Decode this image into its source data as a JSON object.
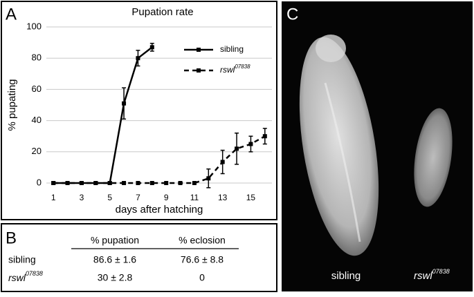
{
  "panel_labels": [
    "A",
    "B",
    "C"
  ],
  "chart_data": {
    "type": "line",
    "title": "Pupation rate",
    "y_label": "% pupating",
    "x_label": "days after hatching",
    "xlim": [
      0.5,
      16.5
    ],
    "xticks": [
      1,
      3,
      5,
      7,
      9,
      11,
      13,
      15
    ],
    "ylim": [
      0,
      100
    ],
    "yticks": [
      0,
      20,
      40,
      60,
      80,
      100
    ],
    "grid": true,
    "legend": "upper right",
    "series": [
      {
        "name": "sibling",
        "color": "#000000",
        "line_style": "solid",
        "x": [
          1,
          2,
          3,
          4,
          5,
          6,
          7,
          8
        ],
        "values": [
          0,
          0,
          0,
          0,
          0,
          51,
          80,
          87
        ],
        "errors": [
          null,
          null,
          null,
          null,
          null,
          10,
          5,
          2.5
        ]
      },
      {
        "name": "rswl",
        "name_superscript": "07838",
        "color": "#000000",
        "line_style": "dashed",
        "x": [
          1,
          2,
          3,
          4,
          5,
          6,
          7,
          8,
          9,
          10,
          11,
          12,
          13,
          14,
          15,
          16
        ],
        "values": [
          0,
          0,
          0,
          0,
          0,
          0,
          0,
          0,
          0,
          0,
          0,
          3,
          13.5,
          22,
          25,
          30
        ],
        "errors": [
          null,
          null,
          null,
          null,
          null,
          null,
          null,
          null,
          null,
          null,
          null,
          6,
          7.5,
          10,
          5,
          5
        ]
      }
    ]
  },
  "table": {
    "header": [
      "% pupation",
      "% eclosion"
    ],
    "rows": [
      {
        "label": "sibling",
        "cells": [
          "86.6 ± 1.6",
          "76.6 ± 8.8"
        ]
      },
      {
        "label": "rswl",
        "label_superscript": "07838",
        "cells": [
          "30 ± 2.8",
          "0"
        ]
      }
    ]
  },
  "image": {
    "labels": [
      {
        "text": "sibling"
      },
      {
        "text": "rswl",
        "superscript": "07838"
      }
    ]
  }
}
